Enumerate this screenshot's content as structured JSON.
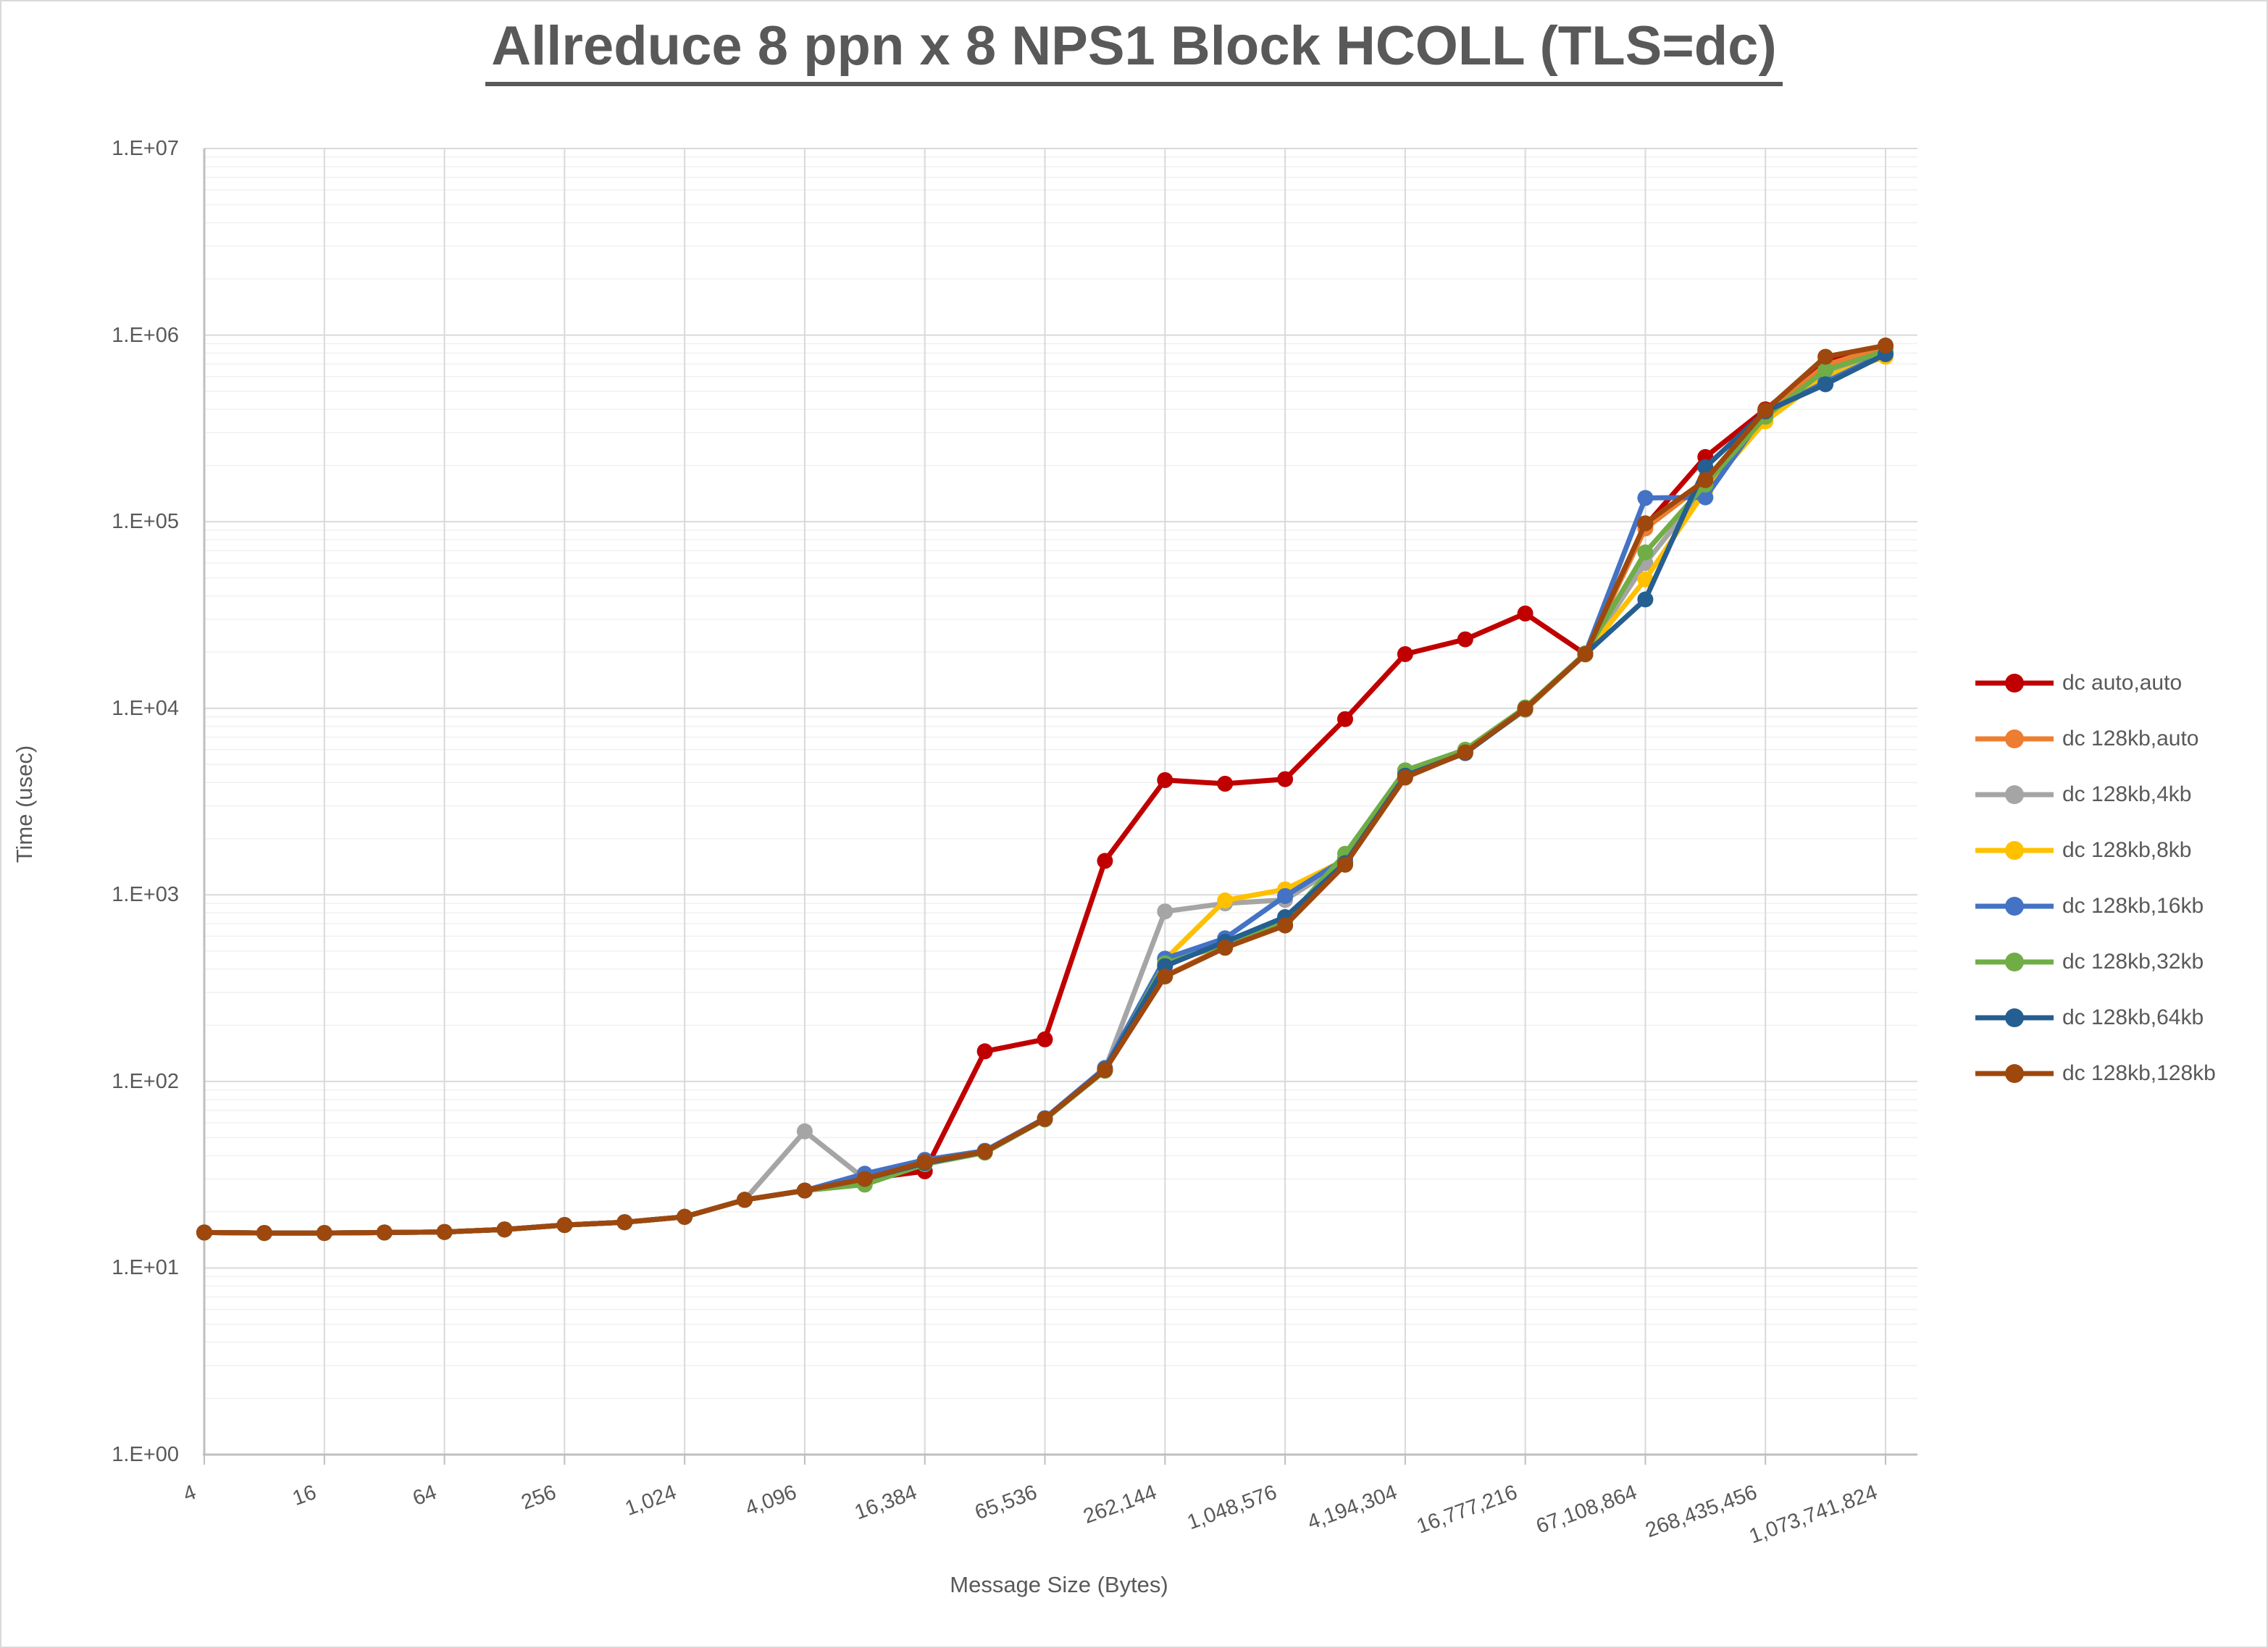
{
  "chart_data": {
    "type": "line",
    "title": "Allreduce 8 ppn x 8 NPS1 Block HCOLL (TLS=dc)",
    "xlabel": "Message Size (Bytes)",
    "ylabel": "Time (usec)",
    "x_scale": "log2-categorical",
    "y_scale": "log10",
    "ylim": [
      1,
      10000000
    ],
    "grid": "major+minor",
    "legend_position": "right",
    "y_tick_labels": [
      "1.E+00",
      "1.E+01",
      "1.E+02",
      "1.E+03",
      "1.E+04",
      "1.E+05",
      "1.E+06",
      "1.E+07"
    ],
    "categories": [
      4,
      8,
      16,
      32,
      64,
      128,
      256,
      512,
      1024,
      2048,
      4096,
      8192,
      16384,
      32768,
      65536,
      131072,
      262144,
      524288,
      1048576,
      2097152,
      4194304,
      8388608,
      16777216,
      33554432,
      67108864,
      134217728,
      268435456,
      536870912,
      1073741824
    ],
    "x_tick_labels": [
      "4",
      "16",
      "64",
      "256",
      "1,024",
      "4,096",
      "16,384",
      "65,536",
      "262,144",
      "1,048,576",
      "4,194,304",
      "16,777,216",
      "67,108,864",
      "268,435,456",
      "1,073,741,824"
    ],
    "x_tick_every": 2,
    "series": [
      {
        "name": "dc auto,auto",
        "color": "#C00000",
        "values": [
          15.5,
          15.4,
          15.4,
          15.5,
          15.6,
          16.1,
          17.0,
          17.6,
          18.8,
          23.2,
          26,
          30,
          33,
          145,
          168,
          1520,
          4120,
          3940,
          4170,
          8750,
          19500,
          23400,
          32200,
          19500,
          95000,
          222000,
          400000,
          720000,
          855000
        ]
      },
      {
        "name": "dc 128kb,auto",
        "color": "#ED7D31",
        "values": [
          15.5,
          15.4,
          15.4,
          15.5,
          15.6,
          16.1,
          17.0,
          17.6,
          18.8,
          23.2,
          26,
          30,
          36.5,
          42,
          63,
          115,
          368,
          525,
          690,
          1460,
          4300,
          5750,
          9900,
          19400,
          92000,
          162000,
          375000,
          690000,
          870000
        ]
      },
      {
        "name": "dc 128kb,4kb",
        "color": "#A5A5A5",
        "values": [
          15.5,
          15.4,
          15.4,
          15.5,
          15.6,
          16.1,
          17.0,
          17.6,
          18.8,
          23.2,
          54,
          30,
          36.5,
          42,
          63,
          116,
          815,
          900,
          940,
          1500,
          4400,
          5800,
          9800,
          19400,
          60000,
          152000,
          355000,
          620000,
          775000
        ]
      },
      {
        "name": "dc 128kb,8kb",
        "color": "#FFC000",
        "values": [
          15.5,
          15.4,
          15.4,
          15.5,
          15.6,
          16.1,
          17.0,
          17.6,
          18.8,
          23.2,
          26,
          30,
          36.5,
          42,
          63,
          115,
          450,
          933,
          1070,
          1540,
          4450,
          5850,
          9850,
          19450,
          49000,
          147000,
          345000,
          600000,
          765000
        ]
      },
      {
        "name": "dc 128kb,16kb",
        "color": "#4472C4",
        "values": [
          15.5,
          15.4,
          15.4,
          15.5,
          15.6,
          16.1,
          17.0,
          17.6,
          18.8,
          23.2,
          26,
          32,
          38,
          42.5,
          63.5,
          118,
          455,
          585,
          985,
          1560,
          4500,
          5900,
          10000,
          19600,
          134000,
          135000,
          385000,
          560000,
          800000
        ]
      },
      {
        "name": "dc 128kb,32kb",
        "color": "#70AD47",
        "values": [
          15.5,
          15.4,
          15.4,
          15.5,
          15.6,
          16.1,
          17.0,
          17.6,
          18.8,
          23.2,
          26,
          28,
          36,
          41.5,
          62.5,
          114,
          430,
          540,
          720,
          1660,
          4650,
          6000,
          10100,
          19700,
          68500,
          158000,
          365000,
          650000,
          820000
        ]
      },
      {
        "name": "dc 128kb,64kb",
        "color": "#255E91",
        "values": [
          15.5,
          15.4,
          15.4,
          15.5,
          15.6,
          16.1,
          17.0,
          17.6,
          18.8,
          23.2,
          26,
          30,
          36.5,
          42,
          63,
          116,
          415,
          560,
          760,
          1480,
          4350,
          5750,
          9900,
          19500,
          38300,
          196000,
          390000,
          545000,
          790000
        ]
      },
      {
        "name": "dc 128kb,128kb",
        "color": "#9E480E",
        "values": [
          15.5,
          15.4,
          15.4,
          15.5,
          15.6,
          16.1,
          17.0,
          17.6,
          18.8,
          23.2,
          26,
          30,
          37,
          42,
          63,
          115,
          365,
          520,
          685,
          1450,
          4250,
          5800,
          9950,
          19500,
          98000,
          167000,
          395000,
          765000,
          880000
        ]
      }
    ]
  },
  "colors": {
    "text": "#595959",
    "grid_major": "#D9D9D9",
    "grid_minor": "#F0F0F0",
    "axis": "#BFBFBF",
    "background": "#FFFFFF"
  }
}
